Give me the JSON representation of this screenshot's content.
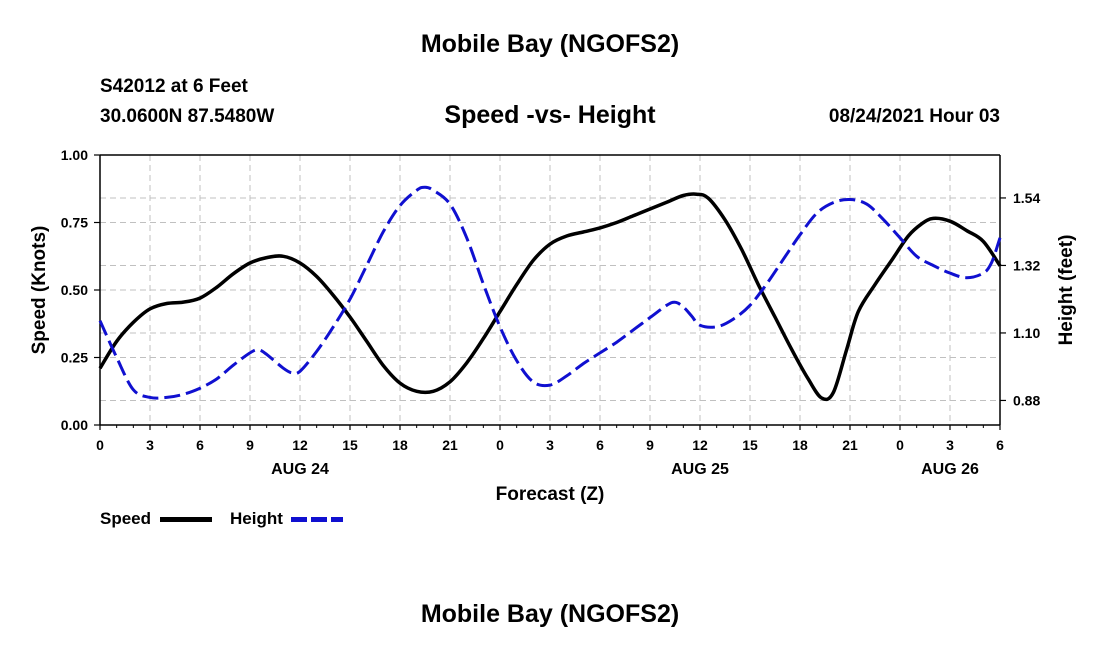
{
  "header": {
    "title": "Mobile Bay (NGOFS2)",
    "station": "S42012 at 6 Feet",
    "coords": "30.0600N  87.5480W",
    "subtitle": "Speed -vs- Height",
    "timestamp": "08/24/2021 Hour 03"
  },
  "footer": {
    "title": "Mobile Bay (NGOFS2)"
  },
  "legend": {
    "speed_label": "Speed",
    "height_label": "Height"
  },
  "colors": {
    "speed": "#000000",
    "height": "#1010d0",
    "grid": "#c0c0c0"
  },
  "chart_data": {
    "type": "line",
    "xlabel": "Forecast (Z)",
    "ylabel_left": "Speed (Knots)",
    "ylabel_right": "Height (feet)",
    "x_range_hours": [
      0,
      54
    ],
    "x_tick_labels": [
      "0",
      "3",
      "6",
      "9",
      "12",
      "15",
      "18",
      "21",
      "0",
      "3",
      "6",
      "9",
      "12",
      "15",
      "18",
      "21",
      "0",
      "3",
      "6"
    ],
    "date_labels": [
      {
        "label": "AUG 24",
        "hour": 12
      },
      {
        "label": "AUG 25",
        "hour": 36
      },
      {
        "label": "AUG 26",
        "hour": 51
      }
    ],
    "y_left": {
      "range": [
        0,
        1
      ],
      "ticks": [
        "0.00",
        "0.25",
        "0.50",
        "0.75",
        "1.00"
      ]
    },
    "y_right": {
      "range": [
        0.8,
        1.68
      ],
      "ticks": [
        "0.88",
        "1.10",
        "1.32",
        "1.54"
      ],
      "tick_values": [
        0.88,
        1.1,
        1.32,
        1.54
      ]
    },
    "grid": true,
    "series": [
      {
        "name": "Speed",
        "axis": "left",
        "points": [
          [
            0,
            0.21
          ],
          [
            1,
            0.31
          ],
          [
            2,
            0.38
          ],
          [
            3,
            0.43
          ],
          [
            4,
            0.45
          ],
          [
            5,
            0.455
          ],
          [
            6,
            0.47
          ],
          [
            7,
            0.51
          ],
          [
            8,
            0.56
          ],
          [
            9,
            0.6
          ],
          [
            10,
            0.62
          ],
          [
            11,
            0.625
          ],
          [
            12,
            0.6
          ],
          [
            13,
            0.55
          ],
          [
            14,
            0.48
          ],
          [
            15,
            0.4
          ],
          [
            16,
            0.31
          ],
          [
            17,
            0.22
          ],
          [
            18,
            0.155
          ],
          [
            19,
            0.125
          ],
          [
            20,
            0.125
          ],
          [
            21,
            0.16
          ],
          [
            22,
            0.23
          ],
          [
            23,
            0.32
          ],
          [
            24,
            0.42
          ],
          [
            25,
            0.52
          ],
          [
            26,
            0.61
          ],
          [
            27,
            0.67
          ],
          [
            28,
            0.7
          ],
          [
            29,
            0.715
          ],
          [
            30,
            0.73
          ],
          [
            31,
            0.75
          ],
          [
            32,
            0.775
          ],
          [
            33,
            0.8
          ],
          [
            34,
            0.825
          ],
          [
            35,
            0.85
          ],
          [
            35.8,
            0.855
          ],
          [
            36.5,
            0.84
          ],
          [
            37.5,
            0.76
          ],
          [
            38.5,
            0.65
          ],
          [
            39.5,
            0.52
          ],
          [
            40.5,
            0.4
          ],
          [
            41.5,
            0.28
          ],
          [
            42.5,
            0.17
          ],
          [
            43.3,
            0.1
          ],
          [
            44,
            0.12
          ],
          [
            44.8,
            0.28
          ],
          [
            45.5,
            0.42
          ],
          [
            46.5,
            0.52
          ],
          [
            47.5,
            0.61
          ],
          [
            48.5,
            0.7
          ],
          [
            49.3,
            0.745
          ],
          [
            50,
            0.765
          ],
          [
            51,
            0.755
          ],
          [
            52,
            0.72
          ],
          [
            53,
            0.68
          ],
          [
            54,
            0.59
          ]
        ]
      },
      {
        "name": "Height",
        "axis": "right",
        "points": [
          [
            0,
            1.14
          ],
          [
            1,
            1.02
          ],
          [
            2,
            0.915
          ],
          [
            3,
            0.89
          ],
          [
            4,
            0.89
          ],
          [
            5,
            0.9
          ],
          [
            6,
            0.92
          ],
          [
            7,
            0.95
          ],
          [
            8,
            0.995
          ],
          [
            9,
            1.035
          ],
          [
            9.5,
            1.045
          ],
          [
            10,
            1.03
          ],
          [
            11,
            0.985
          ],
          [
            11.5,
            0.97
          ],
          [
            12,
            0.975
          ],
          [
            13,
            1.04
          ],
          [
            14,
            1.12
          ],
          [
            15,
            1.21
          ],
          [
            16,
            1.32
          ],
          [
            17,
            1.43
          ],
          [
            18,
            1.515
          ],
          [
            19,
            1.565
          ],
          [
            19.5,
            1.575
          ],
          [
            20,
            1.565
          ],
          [
            21,
            1.52
          ],
          [
            22,
            1.41
          ],
          [
            23,
            1.26
          ],
          [
            24,
            1.12
          ],
          [
            25,
            1.01
          ],
          [
            26,
            0.94
          ],
          [
            27,
            0.93
          ],
          [
            28,
            0.96
          ],
          [
            29,
            1.0
          ],
          [
            30,
            1.035
          ],
          [
            31,
            1.07
          ],
          [
            32,
            1.11
          ],
          [
            33,
            1.15
          ],
          [
            34,
            1.19
          ],
          [
            34.5,
            1.2
          ],
          [
            35,
            1.185
          ],
          [
            35.5,
            1.155
          ],
          [
            36,
            1.125
          ],
          [
            37,
            1.12
          ],
          [
            38,
            1.145
          ],
          [
            39,
            1.19
          ],
          [
            40,
            1.26
          ],
          [
            41,
            1.34
          ],
          [
            42,
            1.42
          ],
          [
            43,
            1.49
          ],
          [
            44,
            1.525
          ],
          [
            45,
            1.535
          ],
          [
            46,
            1.52
          ],
          [
            47,
            1.47
          ],
          [
            48,
            1.41
          ],
          [
            49,
            1.35
          ],
          [
            50,
            1.32
          ],
          [
            51,
            1.295
          ],
          [
            52,
            1.28
          ],
          [
            53,
            1.295
          ],
          [
            53.5,
            1.33
          ],
          [
            54,
            1.41
          ]
        ]
      }
    ]
  }
}
